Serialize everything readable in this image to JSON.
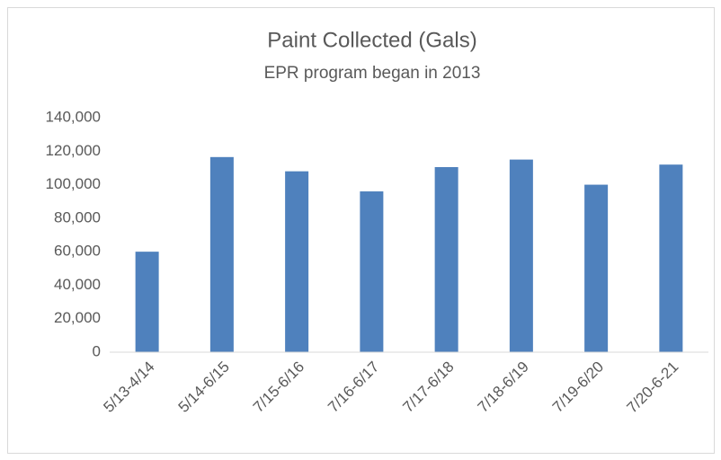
{
  "chart_data": {
    "type": "bar",
    "title": "Paint Collected (Gals)",
    "subtitle": "EPR program began in 2013",
    "categories": [
      "5/13-4/14",
      "5/14-6/15",
      "7/15-6/16",
      "7/16-6/17",
      "7/17-6/18",
      "7/18-6/19",
      "7/19-6/20",
      "7/20-6-21"
    ],
    "values": [
      60000,
      116500,
      108000,
      96000,
      110500,
      115000,
      100000,
      112000
    ],
    "color": "#4f81bd",
    "ylim": [
      0,
      140000
    ],
    "yticks": [
      0,
      {
        "value": 20000,
        "label": "20,000"
      },
      {
        "value": 40000,
        "label": "40,000"
      },
      {
        "value": 60000,
        "label": "60,000"
      },
      {
        "value": 80000,
        "label": "80,000"
      },
      {
        "value": 100000,
        "label": "100,000"
      },
      {
        "value": 120000,
        "label": "120,000"
      },
      {
        "value": 140000,
        "label": "140,000"
      }
    ],
    "grid": false
  }
}
